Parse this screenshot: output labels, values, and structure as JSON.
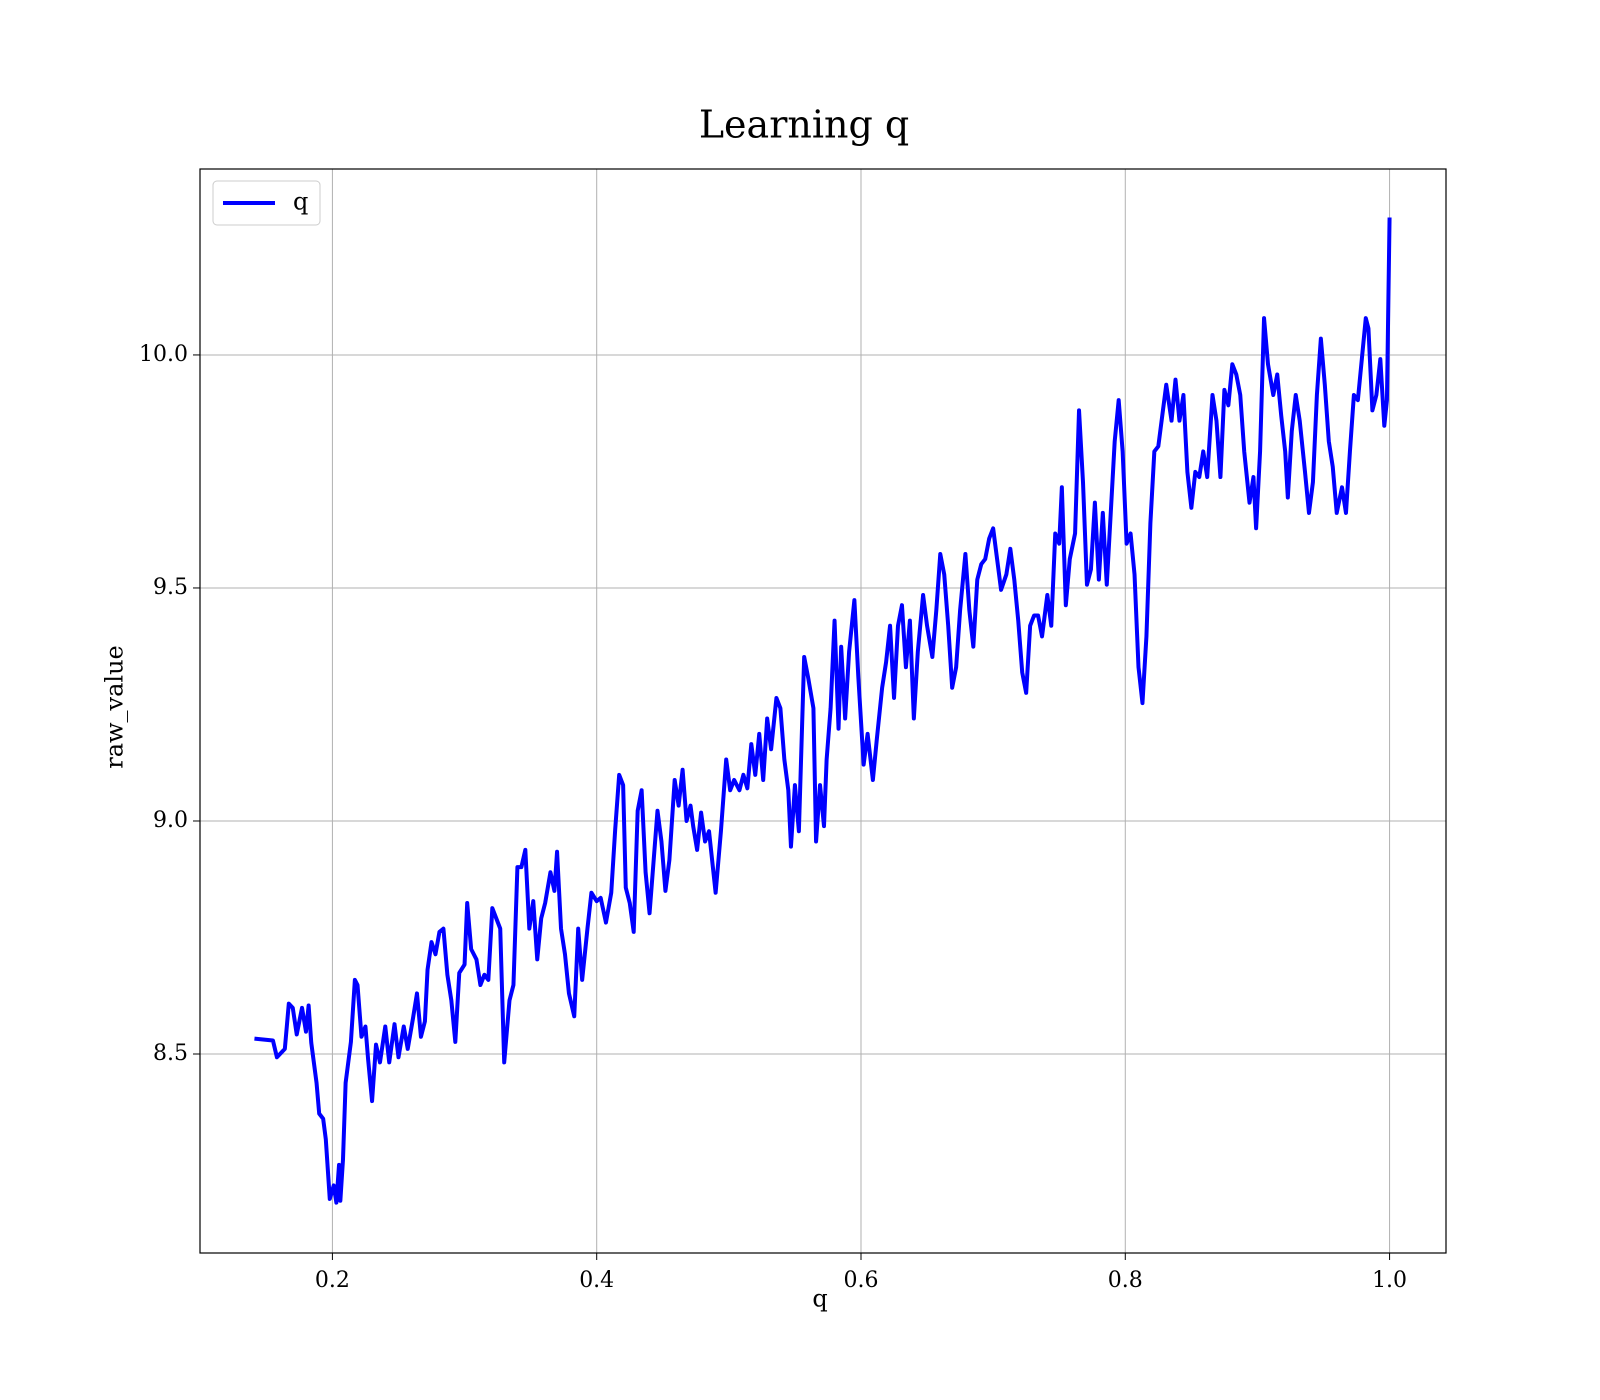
{
  "chart_data": {
    "type": "line",
    "title": "Learning q",
    "x_label": "q",
    "y_label": "raw_value",
    "xlim": [
      0.0998,
      1.0427
    ],
    "ylim": [
      8.073,
      10.399
    ],
    "xticks": [
      0.2,
      0.4,
      0.6,
      0.8,
      {
        "value": 1.0,
        "label": "1.0"
      }
    ],
    "yticks": [
      8.5,
      {
        "value": 9.0,
        "label": "9.0"
      },
      9.5,
      {
        "value": 10.0,
        "label": "10.0"
      }
    ],
    "grid": true,
    "legend": "upper left",
    "x": [
      0.141,
      0.155,
      0.158,
      0.164,
      0.167,
      0.17,
      0.173,
      0.177,
      0.18,
      0.182,
      0.184,
      0.188,
      0.19,
      0.193,
      0.195,
      0.198,
      0.201,
      0.203,
      0.205,
      0.206,
      0.208,
      0.21,
      0.214,
      0.217,
      0.219,
      0.222,
      0.225,
      0.227,
      0.23,
      0.233,
      0.236,
      0.24,
      0.243,
      0.247,
      0.25,
      0.254,
      0.257,
      0.261,
      0.264,
      0.267,
      0.27,
      0.272,
      0.275,
      0.278,
      0.281,
      0.284,
      0.287,
      0.29,
      0.293,
      0.296,
      0.3,
      0.302,
      0.305,
      0.309,
      0.312,
      0.315,
      0.318,
      0.321,
      0.324,
      0.327,
      0.33,
      0.334,
      0.337,
      0.34,
      0.343,
      0.346,
      0.349,
      0.352,
      0.355,
      0.358,
      0.361,
      0.365,
      0.368,
      0.37,
      0.373,
      0.376,
      0.379,
      0.383,
      0.386,
      0.389,
      0.393,
      0.396,
      0.4,
      0.403,
      0.407,
      0.411,
      0.414,
      0.417,
      0.42,
      0.422,
      0.425,
      0.428,
      0.431,
      0.434,
      0.437,
      0.44,
      0.443,
      0.446,
      0.449,
      0.452,
      0.455,
      0.459,
      0.462,
      0.465,
      0.468,
      0.471,
      0.473,
      0.476,
      0.479,
      0.482,
      0.485,
      0.49,
      0.494,
      0.498,
      0.501,
      0.504,
      0.508,
      0.511,
      0.514,
      0.517,
      0.52,
      0.523,
      0.526,
      0.529,
      0.532,
      0.536,
      0.539,
      0.542,
      0.545,
      0.547,
      0.55,
      0.553,
      0.557,
      0.56,
      0.564,
      0.566,
      0.569,
      0.572,
      0.574,
      0.577,
      0.58,
      0.583,
      0.585,
      0.588,
      0.591,
      0.595,
      0.598,
      0.602,
      0.605,
      0.609,
      0.612,
      0.616,
      0.619,
      0.622,
      0.625,
      0.628,
      0.631,
      0.634,
      0.637,
      0.64,
      0.643,
      0.647,
      0.65,
      0.654,
      0.657,
      0.66,
      0.663,
      0.666,
      0.669,
      0.672,
      0.675,
      0.679,
      0.682,
      0.685,
      0.688,
      0.691,
      0.694,
      0.697,
      0.7,
      0.703,
      0.706,
      0.71,
      0.713,
      0.716,
      0.719,
      0.722,
      0.725,
      0.728,
      0.731,
      0.734,
      0.737,
      0.741,
      0.744,
      0.747,
      0.75,
      0.752,
      0.755,
      0.758,
      0.762,
      0.765,
      0.768,
      0.771,
      0.774,
      0.777,
      0.78,
      0.783,
      0.786,
      0.789,
      0.792,
      0.795,
      0.798,
      0.801,
      0.804,
      0.807,
      0.81,
      0.813,
      0.816,
      0.819,
      0.822,
      0.825,
      0.828,
      0.831,
      0.835,
      0.838,
      0.841,
      0.844,
      0.847,
      0.85,
      0.853,
      0.856,
      0.859,
      0.862,
      0.866,
      0.869,
      0.872,
      0.875,
      0.878,
      0.881,
      0.884,
      0.887,
      0.89,
      0.894,
      0.897,
      0.899,
      0.902,
      0.905,
      0.908,
      0.912,
      0.915,
      0.918,
      0.921,
      0.923,
      0.926,
      0.929,
      0.932,
      0.936,
      0.939,
      0.942,
      0.945,
      0.948,
      0.951,
      0.954,
      0.957,
      0.96,
      0.964,
      0.967,
      0.97,
      0.973,
      0.976,
      0.979,
      0.982,
      0.984,
      0.987,
      0.99,
      0.993,
      0.996,
      0.998,
      1.0
    ],
    "series": [
      {
        "name": "q",
        "color": "#0000ff",
        "values": [
          8.533,
          8.529,
          8.493,
          8.511,
          8.608,
          8.599,
          8.542,
          8.599,
          8.548,
          8.604,
          8.524,
          8.438,
          8.372,
          8.361,
          8.317,
          8.189,
          8.218,
          8.181,
          8.262,
          8.185,
          8.273,
          8.438,
          8.526,
          8.659,
          8.648,
          8.537,
          8.559,
          8.489,
          8.399,
          8.52,
          8.482,
          8.559,
          8.482,
          8.564,
          8.493,
          8.559,
          8.511,
          8.577,
          8.63,
          8.537,
          8.57,
          8.681,
          8.74,
          8.714,
          8.762,
          8.769,
          8.67,
          8.615,
          8.526,
          8.674,
          8.692,
          8.824,
          8.725,
          8.703,
          8.648,
          8.67,
          8.659,
          8.813,
          8.791,
          8.769,
          8.482,
          8.615,
          8.648,
          8.901,
          8.901,
          8.938,
          8.769,
          8.828,
          8.703,
          8.791,
          8.824,
          8.89,
          8.85,
          8.934,
          8.769,
          8.714,
          8.63,
          8.581,
          8.769,
          8.659,
          8.769,
          8.846,
          8.828,
          8.835,
          8.782,
          8.846,
          8.982,
          9.099,
          9.077,
          8.857,
          8.824,
          8.762,
          9.022,
          9.066,
          8.89,
          8.802,
          8.912,
          9.022,
          8.956,
          8.85,
          8.916,
          9.088,
          9.033,
          9.11,
          9.0,
          9.033,
          8.989,
          8.938,
          9.018,
          8.956,
          8.978,
          8.846,
          8.978,
          9.132,
          9.066,
          9.088,
          9.066,
          9.099,
          9.07,
          9.165,
          9.099,
          9.187,
          9.088,
          9.22,
          9.154,
          9.264,
          9.242,
          9.132,
          9.066,
          8.945,
          9.077,
          8.978,
          9.352,
          9.308,
          9.242,
          8.956,
          9.077,
          8.989,
          9.132,
          9.242,
          9.43,
          9.198,
          9.374,
          9.22,
          9.363,
          9.474,
          9.308,
          9.121,
          9.187,
          9.088,
          9.176,
          9.286,
          9.341,
          9.419,
          9.264,
          9.419,
          9.463,
          9.33,
          9.43,
          9.22,
          9.363,
          9.485,
          9.419,
          9.352,
          9.452,
          9.573,
          9.529,
          9.419,
          9.286,
          9.33,
          9.452,
          9.573,
          9.452,
          9.374,
          9.518,
          9.551,
          9.562,
          9.606,
          9.628,
          9.562,
          9.496,
          9.529,
          9.584,
          9.518,
          9.43,
          9.319,
          9.275,
          9.419,
          9.441,
          9.441,
          9.396,
          9.485,
          9.419,
          9.617,
          9.595,
          9.716,
          9.463,
          9.562,
          9.617,
          9.881,
          9.727,
          9.507,
          9.54,
          9.683,
          9.518,
          9.661,
          9.507,
          9.661,
          9.815,
          9.903,
          9.793,
          9.595,
          9.617,
          9.529,
          9.33,
          9.253,
          9.396,
          9.639,
          9.793,
          9.804,
          9.87,
          9.936,
          9.859,
          9.947,
          9.859,
          9.914,
          9.749,
          9.672,
          9.749,
          9.738,
          9.793,
          9.738,
          9.914,
          9.859,
          9.738,
          9.925,
          9.892,
          9.98,
          9.958,
          9.914,
          9.793,
          9.683,
          9.738,
          9.628,
          9.793,
          10.079,
          9.98,
          9.914,
          9.958,
          9.87,
          9.793,
          9.694,
          9.837,
          9.914,
          9.859,
          9.749,
          9.661,
          9.727,
          9.914,
          10.035,
          9.936,
          9.815,
          9.76,
          9.661,
          9.716,
          9.661,
          9.793,
          9.914,
          9.903,
          9.991,
          10.079,
          10.057,
          9.881,
          9.914,
          9.991,
          9.848,
          9.903,
          10.295
        ]
      }
    ]
  }
}
